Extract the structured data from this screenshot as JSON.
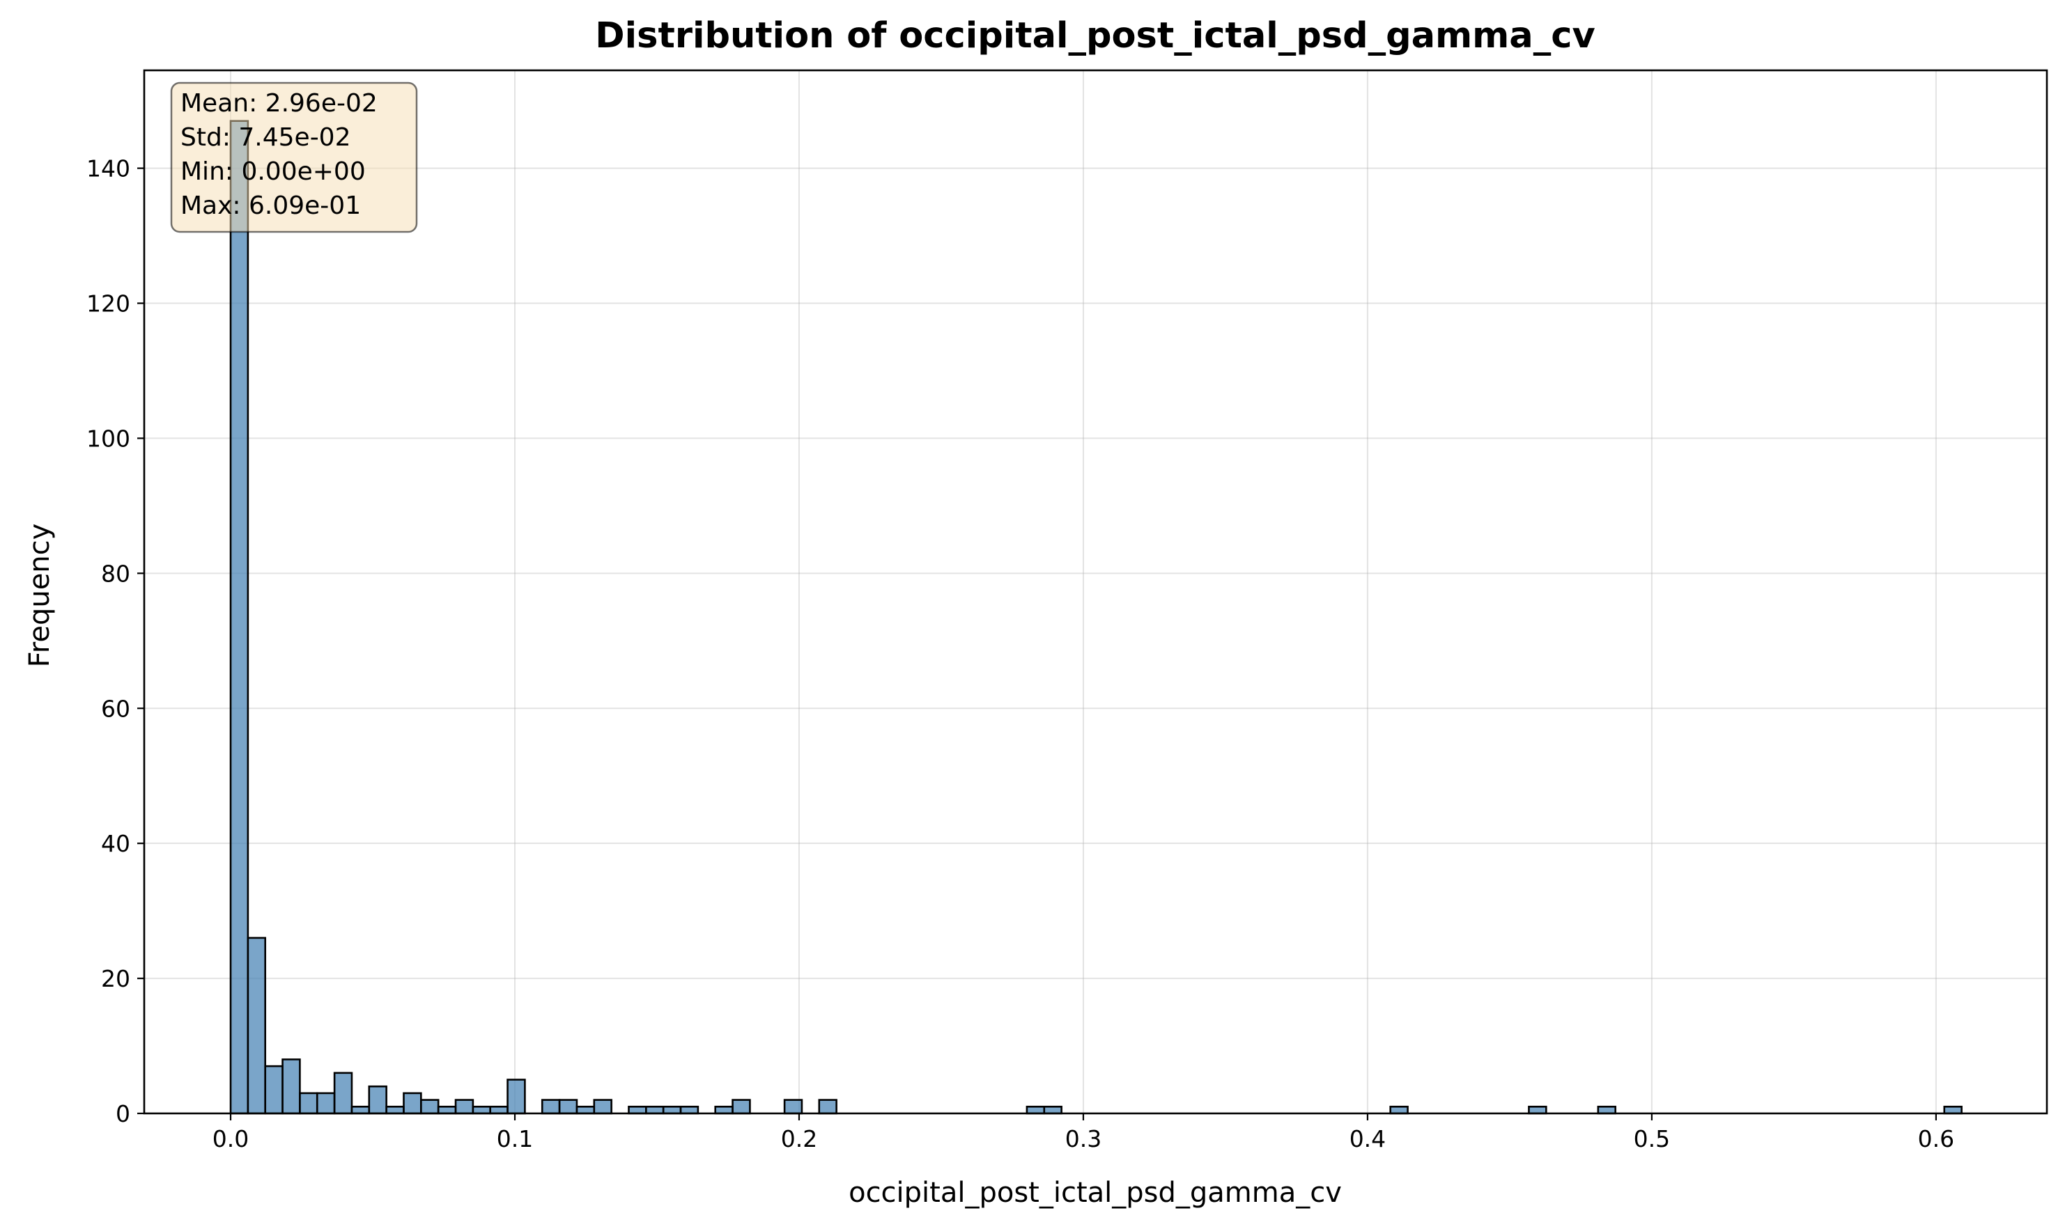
{
  "chart_data": {
    "type": "bar",
    "title": "Distribution of occipital_post_ictal_psd_gamma_cv",
    "xlabel": "occipital_post_ictal_psd_gamma_cv",
    "ylabel": "Frequency",
    "xlim": [
      -0.0304,
      0.639
    ],
    "ylim": [
      0,
      154.5
    ],
    "xticks": [
      0.0,
      0.1,
      0.2,
      0.3,
      0.4,
      0.5,
      0.6
    ],
    "xtick_labels": [
      "0.0",
      "0.1",
      "0.2",
      "0.3",
      "0.4",
      "0.5",
      "0.6"
    ],
    "yticks": [
      0,
      20,
      40,
      60,
      80,
      100,
      120,
      140
    ],
    "ytick_labels": [
      "0",
      "20",
      "40",
      "60",
      "80",
      "100",
      "120",
      "140"
    ],
    "grid": true,
    "bin_start": 0.0,
    "bin_width": 0.00609,
    "counts": [
      147,
      26,
      7,
      8,
      3,
      3,
      6,
      1,
      4,
      1,
      3,
      2,
      1,
      2,
      1,
      1,
      5,
      0,
      2,
      2,
      1,
      2,
      0,
      1,
      1,
      1,
      1,
      0,
      1,
      2,
      0,
      0,
      2,
      0,
      2,
      0,
      0,
      0,
      0,
      0,
      0,
      0,
      0,
      0,
      0,
      0,
      1,
      1,
      0,
      0,
      0,
      0,
      0,
      0,
      0,
      0,
      0,
      0,
      0,
      0,
      0,
      0,
      0,
      0,
      0,
      0,
      0,
      1,
      0,
      0,
      0,
      0,
      0,
      0,
      0,
      1,
      0,
      0,
      0,
      1,
      0,
      0,
      0,
      0,
      0,
      0,
      0,
      0,
      0,
      0,
      0,
      0,
      0,
      0,
      0,
      0,
      0,
      0,
      0,
      1
    ],
    "colors": {
      "bar": "#4682b4",
      "edge": "#000000",
      "stats_box": "#f5deb3"
    },
    "stats_box": {
      "placement": "top-left",
      "lines": [
        "Mean: 2.96e-02",
        "Std: 7.45e-02",
        "Min: 0.00e+00",
        "Max: 6.09e-01"
      ]
    }
  }
}
